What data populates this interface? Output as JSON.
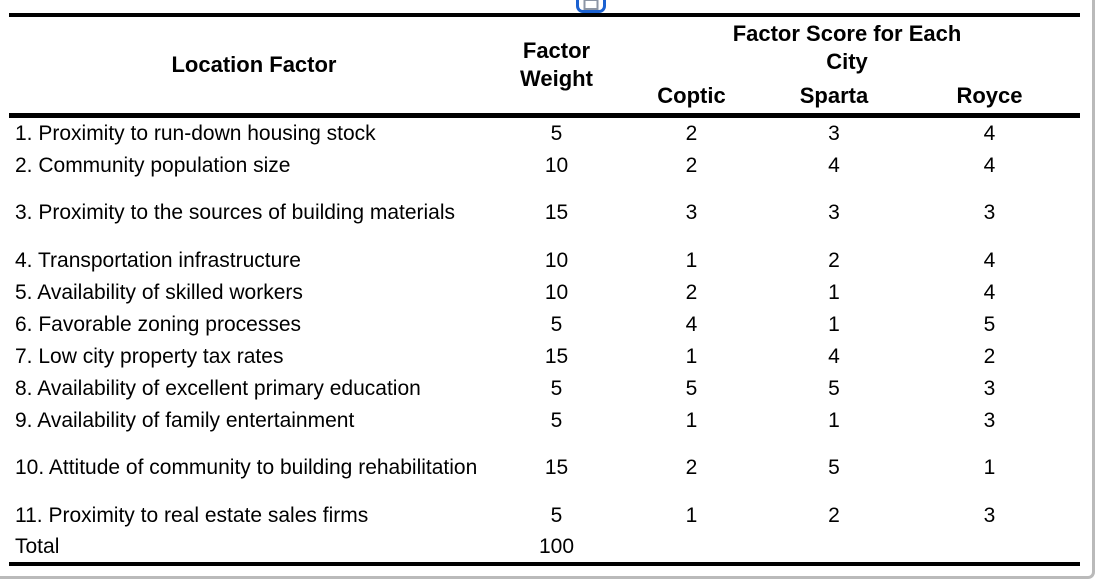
{
  "icon": {
    "name": "blue-clipped-copy-icon"
  },
  "table": {
    "headers": {
      "location": "Location Factor",
      "weight": "Factor\nWeight",
      "score_group": "Factor Score for Each\nCity",
      "cities": [
        "Coptic",
        "Sparta",
        "Royce"
      ]
    },
    "rows": [
      {
        "factor": "1. Proximity to run-down housing stock",
        "weight": "5",
        "coptic": "2",
        "sparta": "3",
        "royce": "4"
      },
      {
        "factor": "2. Community population size",
        "weight": "10",
        "coptic": "2",
        "sparta": "4",
        "royce": "4"
      },
      {
        "factor": "3. Proximity to the sources of building materials",
        "weight": "15",
        "coptic": "3",
        "sparta": "3",
        "royce": "3"
      },
      {
        "factor": "4. Transportation infrastructure",
        "weight": "10",
        "coptic": "1",
        "sparta": "2",
        "royce": "4"
      },
      {
        "factor": "5. Availability of skilled workers",
        "weight": "10",
        "coptic": "2",
        "sparta": "1",
        "royce": "4"
      },
      {
        "factor": "6. Favorable zoning processes",
        "weight": "5",
        "coptic": "4",
        "sparta": "1",
        "royce": "5"
      },
      {
        "factor": "7. Low city property tax rates",
        "weight": "15",
        "coptic": "1",
        "sparta": "4",
        "royce": "2"
      },
      {
        "factor": "8. Availability of excellent primary education",
        "weight": "5",
        "coptic": "5",
        "sparta": "5",
        "royce": "3"
      },
      {
        "factor": "9. Availability of family entertainment",
        "weight": "5",
        "coptic": "1",
        "sparta": "1",
        "royce": "3"
      },
      {
        "factor": "10. Attitude of community to building rehabilitation",
        "weight": "15",
        "coptic": "2",
        "sparta": "5",
        "royce": "1"
      },
      {
        "factor": "11. Proximity to real estate sales firms",
        "weight": "5",
        "coptic": "1",
        "sparta": "2",
        "royce": "3"
      }
    ],
    "total": {
      "label": "Total",
      "weight": "100"
    }
  },
  "colors": {
    "rule": "#000000",
    "frame": "#bababa",
    "icon_blue": "#1b61d1",
    "icon_gray": "#8d96a5"
  },
  "chart_data": {
    "type": "table",
    "title": "Factor rating table",
    "columns": [
      "Location Factor",
      "Factor Weight",
      "Coptic",
      "Sparta",
      "Royce"
    ],
    "rows": [
      [
        "1. Proximity to run-down housing stock",
        5,
        2,
        3,
        4
      ],
      [
        "2. Community population size",
        10,
        2,
        4,
        4
      ],
      [
        "3. Proximity to the sources of building materials",
        15,
        3,
        3,
        3
      ],
      [
        "4. Transportation infrastructure",
        10,
        1,
        2,
        4
      ],
      [
        "5. Availability of skilled workers",
        10,
        2,
        1,
        4
      ],
      [
        "6. Favorable zoning processes",
        5,
        4,
        1,
        5
      ],
      [
        "7. Low city property tax rates",
        15,
        1,
        4,
        2
      ],
      [
        "8. Availability of excellent primary education",
        5,
        5,
        5,
        3
      ],
      [
        "9. Availability of family entertainment",
        5,
        1,
        1,
        3
      ],
      [
        "10. Attitude of community to building rehabilitation",
        15,
        2,
        5,
        1
      ],
      [
        "11. Proximity to real estate sales firms",
        5,
        1,
        2,
        3
      ],
      [
        "Total",
        100,
        null,
        null,
        null
      ]
    ]
  }
}
